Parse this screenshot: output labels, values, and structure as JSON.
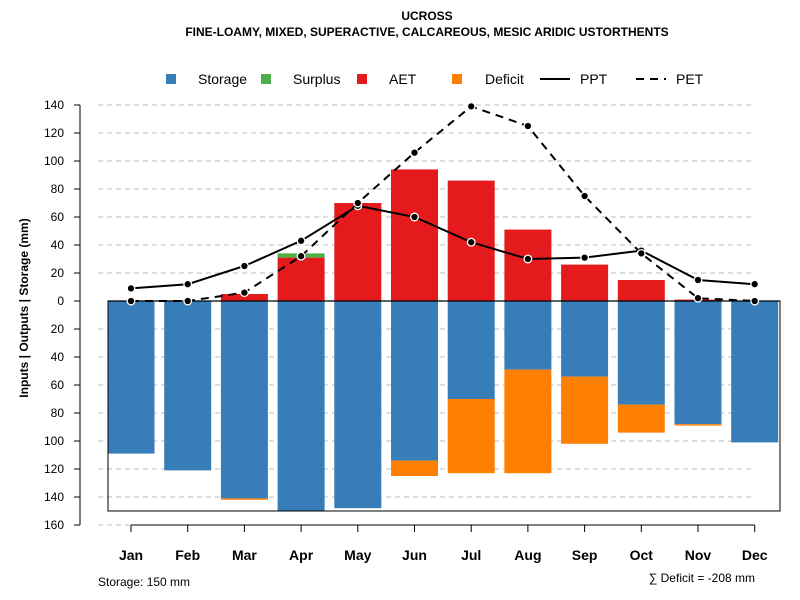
{
  "chart_data": {
    "type": "bar",
    "title": "UCROSS",
    "subtitle": "FINE-LOAMY, MIXED, SUPERACTIVE, CALCAREOUS, MESIC ARIDIC USTORTHENTS",
    "ylabel": "Inputs | Outputs | Storage    (mm)",
    "xlabel": "",
    "categories": [
      "Jan",
      "Feb",
      "Mar",
      "Apr",
      "May",
      "Jun",
      "Jul",
      "Aug",
      "Sep",
      "Oct",
      "Nov",
      "Dec"
    ],
    "ylim": [
      -160,
      140
    ],
    "yticks": [
      140,
      120,
      100,
      80,
      60,
      40,
      20,
      0,
      -20,
      -40,
      -60,
      -80,
      -100,
      -120,
      -140,
      -160
    ],
    "ytick_labels": [
      "140",
      "120",
      "100",
      "80",
      "60",
      "40",
      "20",
      "0",
      "20",
      "40",
      "60",
      "80",
      "100",
      "120",
      "140",
      "160"
    ],
    "grid": true,
    "legend": {
      "position": "top",
      "items": [
        {
          "label": "Storage",
          "kind": "box",
          "color": "#377EB8"
        },
        {
          "label": "Surplus",
          "kind": "box",
          "color": "#4DAF4A"
        },
        {
          "label": "AET",
          "kind": "box",
          "color": "#E41A1C"
        },
        {
          "label": "Deficit",
          "kind": "box",
          "color": "#FF7F00"
        },
        {
          "label": "PPT",
          "kind": "solid"
        },
        {
          "label": "PET",
          "kind": "dashed"
        }
      ]
    },
    "series": [
      {
        "name": "AET",
        "color": "#E41A1C",
        "values": [
          0,
          0,
          5,
          31,
          70,
          94,
          86,
          51,
          26,
          15,
          1,
          0
        ]
      },
      {
        "name": "Surplus",
        "color": "#4DAF4A",
        "values": [
          0,
          0,
          0,
          3,
          0,
          0,
          0,
          0,
          0,
          0,
          0,
          0
        ]
      },
      {
        "name": "Storage",
        "color": "#377EB8",
        "values": [
          109,
          121,
          141,
          150,
          148,
          114,
          70,
          49,
          54,
          74,
          88,
          101
        ]
      },
      {
        "name": "Deficit",
        "color": "#FF7F00",
        "values": [
          0,
          0,
          1,
          0,
          0,
          11,
          53,
          74,
          48,
          20,
          1,
          0
        ]
      },
      {
        "name": "PPT",
        "type": "line",
        "style": "solid",
        "values": [
          9,
          12,
          25,
          43,
          68,
          60,
          42,
          30,
          31,
          36,
          15,
          12
        ]
      },
      {
        "name": "PET",
        "type": "line",
        "style": "dashed",
        "values": [
          0,
          0,
          6,
          32,
          70,
          106,
          139,
          125,
          75,
          34,
          2,
          0
        ]
      }
    ],
    "storage_capacity": 150,
    "footer_left": "Storage: 150 mm",
    "footer_right": "∑ Deficit = -208 mm"
  }
}
